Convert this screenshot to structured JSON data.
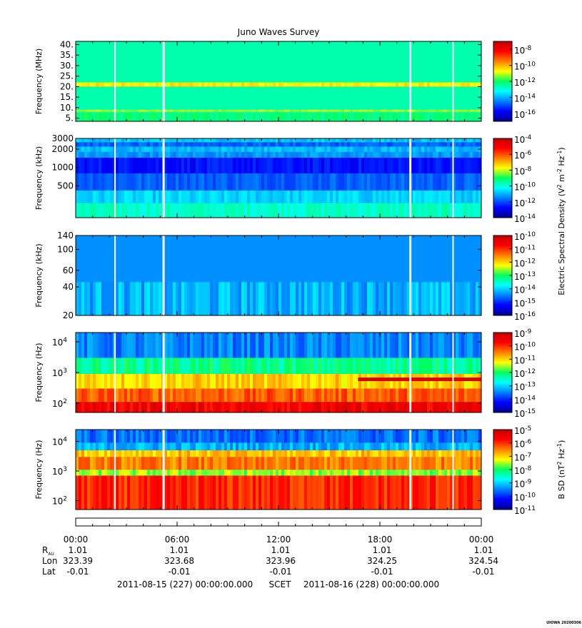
{
  "chart_data": {
    "type": "heatmap",
    "title": "Juno Waves Survey",
    "panels": [
      {
        "id": "mhz",
        "ylabel": "Frequency (MHz)",
        "yscale": "linear",
        "ylim": [
          3.5,
          41.5
        ],
        "yticks": [
          5,
          10,
          15,
          20,
          25,
          30,
          35,
          40
        ],
        "ytick_labels": [
          "5.",
          "10.",
          "15.",
          "20.",
          "25.",
          "30.",
          "35.",
          "40."
        ],
        "colorbar": {
          "exp_min": -17,
          "exp_max": -7,
          "tick_exps": [
            -16,
            -14,
            -12,
            -10,
            -8
          ]
        },
        "background_level": -12.6,
        "bands": [
          {
            "from": 3.5,
            "to": 7.5,
            "level": -12.2
          },
          {
            "from": 8.0,
            "to": 9.0,
            "level": -11.2
          },
          {
            "from": 20.0,
            "to": 22.0,
            "level": -10.6
          }
        ]
      },
      {
        "id": "khz_high",
        "ylabel": "Frequency (kHz)",
        "yscale": "log",
        "ylim": [
          150,
          3000
        ],
        "yticks": [
          500,
          1000,
          2000,
          3000
        ],
        "ytick_labels": [
          "500",
          "1000",
          "2000",
          "3000"
        ],
        "colorbar": {
          "exp_min": -14,
          "exp_max": -4,
          "tick_exps": [
            -14,
            -12,
            -10,
            -8,
            -6,
            -4
          ]
        },
        "background_level": -11.5,
        "bands": [
          {
            "from": 150,
            "to": 260,
            "level": -9.8
          },
          {
            "from": 260,
            "to": 420,
            "level": -10.7
          },
          {
            "from": 420,
            "to": 800,
            "level": -11.8
          },
          {
            "from": 800,
            "to": 1450,
            "level": -12.6
          },
          {
            "from": 1450,
            "to": 1800,
            "level": -11.3
          },
          {
            "from": 1800,
            "to": 2200,
            "level": -10.9
          },
          {
            "from": 2200,
            "to": 2600,
            "level": -11.8
          },
          {
            "from": 2600,
            "to": 3000,
            "level": -10.8
          }
        ]
      },
      {
        "id": "khz_low",
        "ylabel": "Frequency (kHz)",
        "yscale": "log",
        "ylim": [
          20,
          140
        ],
        "yticks": [
          20,
          40,
          60,
          100,
          140
        ],
        "ytick_labels": [
          "20",
          "40",
          "60",
          "100",
          "140"
        ],
        "colorbar": {
          "exp_min": -16,
          "exp_max": -10,
          "tick_exps": [
            -16,
            -15,
            -14,
            -13,
            -12,
            -11,
            -10
          ]
        },
        "background_level": -14.4,
        "bands": [
          {
            "from": 20,
            "to": 45,
            "level": -14.2
          }
        ]
      },
      {
        "id": "hz_e",
        "ylabel": "Frequency (Hz)",
        "yscale": "log",
        "ylim": [
          50,
          20000
        ],
        "yticks": [
          100,
          1000,
          10000
        ],
        "ytick_labels": [
          "10^2",
          "10^3",
          "10^4"
        ],
        "colorbar": {
          "exp_min": -15,
          "exp_max": -9,
          "tick_exps": [
            -15,
            -14,
            -13,
            -12,
            -11,
            -10,
            -9
          ]
        },
        "background_level": -13.6,
        "bands": [
          {
            "from": 50,
            "to": 110,
            "level": -9.6
          },
          {
            "from": 110,
            "to": 300,
            "level": -10.3
          },
          {
            "from": 300,
            "to": 900,
            "level": -11.0
          },
          {
            "from": 900,
            "to": 3000,
            "level": -12.2
          },
          {
            "from": 3000,
            "to": 20000,
            "level": -13.5
          }
        ],
        "line": {
          "from_hour": 16.7,
          "to_hour": 24,
          "freq": 600,
          "level": -9.3
        }
      },
      {
        "id": "hz_b",
        "ylabel": "Frequency (Hz)",
        "yscale": "log",
        "ylim": [
          50,
          25000
        ],
        "yticks": [
          100,
          1000,
          10000
        ],
        "ytick_labels": [
          "10^2",
          "10^3",
          "10^4"
        ],
        "colorbar_label": "B SD (nT^2 Hz^-1)",
        "colorbar": {
          "exp_min": -11,
          "exp_max": -5,
          "tick_exps": [
            -11,
            -10,
            -9,
            -8,
            -7,
            -6,
            -5
          ]
        },
        "background_level": -8.8,
        "bands": [
          {
            "from": 50,
            "to": 700,
            "level": -6.0
          },
          {
            "from": 700,
            "to": 1100,
            "level": -7.6
          },
          {
            "from": 1100,
            "to": 3000,
            "level": -6.5
          },
          {
            "from": 3000,
            "to": 5000,
            "level": -6.9
          },
          {
            "from": 5000,
            "to": 9000,
            "level": -9.2
          },
          {
            "from": 9000,
            "to": 25000,
            "level": -9.6
          }
        ]
      }
    ],
    "shared_colorbar_label": "Electric Spectral Density (V^2 m^-2 Hz^-1)",
    "gaps_hours": [
      2.35,
      5.2,
      19.8,
      22.35
    ],
    "x": {
      "range_hours": [
        0,
        24
      ],
      "tick_hours": [
        0,
        6,
        12,
        18,
        24
      ],
      "tick_labels": [
        "00:00",
        "06:00",
        "12:00",
        "18:00",
        "00:00"
      ],
      "ephemeris": [
        {
          "label": "R",
          "sub": "AU",
          "values": [
            "1.01",
            "1.01",
            "1.01",
            "1.01",
            "1.01"
          ]
        },
        {
          "label": "Lon",
          "sub": "",
          "values": [
            "323.39",
            "323.68",
            "323.96",
            "324.25",
            "324.54"
          ]
        },
        {
          "label": "Lat",
          "sub": "",
          "values": [
            "-0.01",
            "-0.01",
            "-0.01",
            "-0.01",
            "-0.01"
          ]
        }
      ]
    },
    "footer": {
      "start": "2011-08-15 (227) 00:00:00.000",
      "scet": "SCET",
      "end": "2011-08-16 (228) 00:00:00.000"
    },
    "stamp": "UIOWA 20200306"
  }
}
